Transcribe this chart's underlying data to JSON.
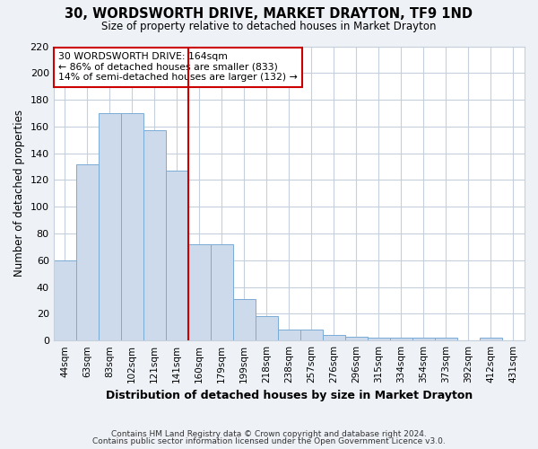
{
  "title": "30, WORDSWORTH DRIVE, MARKET DRAYTON, TF9 1ND",
  "subtitle": "Size of property relative to detached houses in Market Drayton",
  "xlabel": "Distribution of detached houses by size in Market Drayton",
  "ylabel": "Number of detached properties",
  "bin_labels": [
    "44sqm",
    "63sqm",
    "83sqm",
    "102sqm",
    "121sqm",
    "141sqm",
    "160sqm",
    "179sqm",
    "199sqm",
    "218sqm",
    "238sqm",
    "257sqm",
    "276sqm",
    "296sqm",
    "315sqm",
    "334sqm",
    "354sqm",
    "373sqm",
    "392sqm",
    "412sqm",
    "431sqm"
  ],
  "bar_values": [
    60,
    132,
    170,
    170,
    157,
    127,
    72,
    72,
    31,
    18,
    8,
    8,
    4,
    3,
    2,
    2,
    2,
    2,
    0,
    2,
    0
  ],
  "bar_color": "#cddaeb",
  "bar_edge_color": "#7aacd6",
  "vline_pos": 5.5,
  "vline_color": "#cc0000",
  "annotation_lines": [
    "30 WORDSWORTH DRIVE: 164sqm",
    "← 86% of detached houses are smaller (833)",
    "14% of semi-detached houses are larger (132) →"
  ],
  "annotation_box_edge": "#cc0000",
  "ylim": [
    0,
    220
  ],
  "yticks": [
    0,
    20,
    40,
    60,
    80,
    100,
    120,
    140,
    160,
    180,
    200,
    220
  ],
  "footer_lines": [
    "Contains HM Land Registry data © Crown copyright and database right 2024.",
    "Contains public sector information licensed under the Open Government Licence v3.0."
  ],
  "bg_color": "#eef2f7",
  "plot_bg_color": "#ffffff",
  "grid_color": "#c5d0dc"
}
